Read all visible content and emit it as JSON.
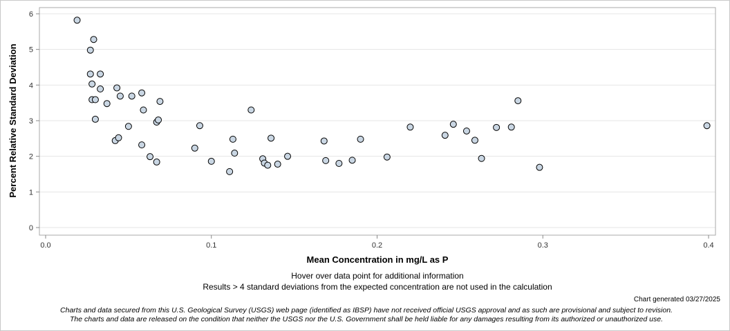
{
  "chart_data": {
    "type": "scatter",
    "xlabel": "Mean Concentration in mg/L as P",
    "ylabel": "Percent Relative Standard Deviation",
    "xlim": [
      0.0,
      0.4
    ],
    "ylim": [
      0,
      6
    ],
    "x_ticks": [
      "0.0",
      "0.1",
      "0.2",
      "0.3",
      "0.4"
    ],
    "y_ticks": [
      "0",
      "1",
      "2",
      "3",
      "4",
      "5",
      "6"
    ],
    "grid": true,
    "point_color": "#c9d6e3",
    "point_stroke": "#000000",
    "points": [
      {
        "x": 0.019,
        "y": 5.82
      },
      {
        "x": 0.027,
        "y": 4.98
      },
      {
        "x": 0.027,
        "y": 4.31
      },
      {
        "x": 0.028,
        "y": 4.03
      },
      {
        "x": 0.028,
        "y": 3.59
      },
      {
        "x": 0.029,
        "y": 5.28
      },
      {
        "x": 0.03,
        "y": 3.59
      },
      {
        "x": 0.03,
        "y": 3.04
      },
      {
        "x": 0.033,
        "y": 4.31
      },
      {
        "x": 0.033,
        "y": 3.89
      },
      {
        "x": 0.037,
        "y": 3.48
      },
      {
        "x": 0.042,
        "y": 2.44
      },
      {
        "x": 0.043,
        "y": 3.92
      },
      {
        "x": 0.044,
        "y": 2.52
      },
      {
        "x": 0.045,
        "y": 3.69
      },
      {
        "x": 0.05,
        "y": 2.84
      },
      {
        "x": 0.052,
        "y": 3.69
      },
      {
        "x": 0.058,
        "y": 3.78
      },
      {
        "x": 0.058,
        "y": 2.32
      },
      {
        "x": 0.059,
        "y": 3.3
      },
      {
        "x": 0.063,
        "y": 1.99
      },
      {
        "x": 0.067,
        "y": 2.96
      },
      {
        "x": 0.067,
        "y": 1.84
      },
      {
        "x": 0.068,
        "y": 3.02
      },
      {
        "x": 0.069,
        "y": 3.54
      },
      {
        "x": 0.09,
        "y": 2.23
      },
      {
        "x": 0.093,
        "y": 2.86
      },
      {
        "x": 0.1,
        "y": 1.86
      },
      {
        "x": 0.111,
        "y": 1.57
      },
      {
        "x": 0.113,
        "y": 2.48
      },
      {
        "x": 0.114,
        "y": 2.09
      },
      {
        "x": 0.124,
        "y": 3.3
      },
      {
        "x": 0.131,
        "y": 1.93
      },
      {
        "x": 0.132,
        "y": 1.81
      },
      {
        "x": 0.134,
        "y": 1.75
      },
      {
        "x": 0.136,
        "y": 2.51
      },
      {
        "x": 0.14,
        "y": 1.78
      },
      {
        "x": 0.146,
        "y": 2.0
      },
      {
        "x": 0.168,
        "y": 2.43
      },
      {
        "x": 0.169,
        "y": 1.88
      },
      {
        "x": 0.177,
        "y": 1.8
      },
      {
        "x": 0.185,
        "y": 1.89
      },
      {
        "x": 0.19,
        "y": 2.48
      },
      {
        "x": 0.206,
        "y": 1.98
      },
      {
        "x": 0.22,
        "y": 2.82
      },
      {
        "x": 0.241,
        "y": 2.59
      },
      {
        "x": 0.246,
        "y": 2.9
      },
      {
        "x": 0.254,
        "y": 2.71
      },
      {
        "x": 0.259,
        "y": 2.45
      },
      {
        "x": 0.263,
        "y": 1.94
      },
      {
        "x": 0.272,
        "y": 2.81
      },
      {
        "x": 0.281,
        "y": 2.82
      },
      {
        "x": 0.285,
        "y": 3.56
      },
      {
        "x": 0.298,
        "y": 1.69
      },
      {
        "x": 0.399,
        "y": 2.86
      }
    ]
  },
  "notes": {
    "hover": "Hover over data point for additional information",
    "exclusion": "Results > 4 standard deviations from the expected concentration are not used in the calculation",
    "generated": "Chart generated 03/27/2025",
    "disclaimer_line1": "Charts and data secured from this U.S. Geological Survey (USGS) web page (identified as IBSP) have not received official USGS approval and as such are provisional and subject to revision.",
    "disclaimer_line2": "The charts and data are released on the condition that neither the USGS nor the U.S. Government shall be held liable for any damages resulting from its authorized or unauthorized use."
  }
}
